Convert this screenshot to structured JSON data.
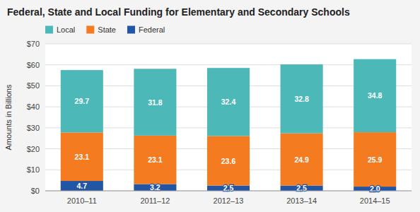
{
  "chart_data": {
    "type": "bar",
    "stacked": true,
    "title": "Federal, State and Local Funding for Elementary and Secondary Schools",
    "categories": [
      "2010–11",
      "2011–12",
      "2012–13",
      "2013–14",
      "2014–15"
    ],
    "series": [
      {
        "name": "Federal",
        "color": "#2255A4",
        "values": [
          4.7,
          3.2,
          2.5,
          2.5,
          2.0
        ],
        "value_labels": [
          "4.7",
          "3.2",
          "2.5",
          "2.5",
          "2.0"
        ]
      },
      {
        "name": "State",
        "color": "#F47B20",
        "values": [
          23.1,
          23.1,
          23.6,
          24.9,
          25.9
        ]
      },
      {
        "name": "Local",
        "color": "#4DB8B8",
        "values": [
          29.7,
          31.8,
          32.4,
          32.8,
          34.8
        ]
      }
    ],
    "ylabel": "Amounts in Billions",
    "ylim": [
      0,
      70
    ],
    "yticks": [
      {
        "value": 0,
        "label": "$0"
      },
      {
        "value": 10,
        "label": "$10"
      },
      {
        "value": 20,
        "label": "$20"
      },
      {
        "value": 30,
        "label": "$30"
      },
      {
        "value": 40,
        "label": "$40"
      },
      {
        "value": 50,
        "label": "$50"
      },
      {
        "value": 60,
        "label": "$60"
      },
      {
        "value": 70,
        "label": "$70"
      }
    ],
    "grid": true,
    "legend": "top-left",
    "data_labels": true
  }
}
